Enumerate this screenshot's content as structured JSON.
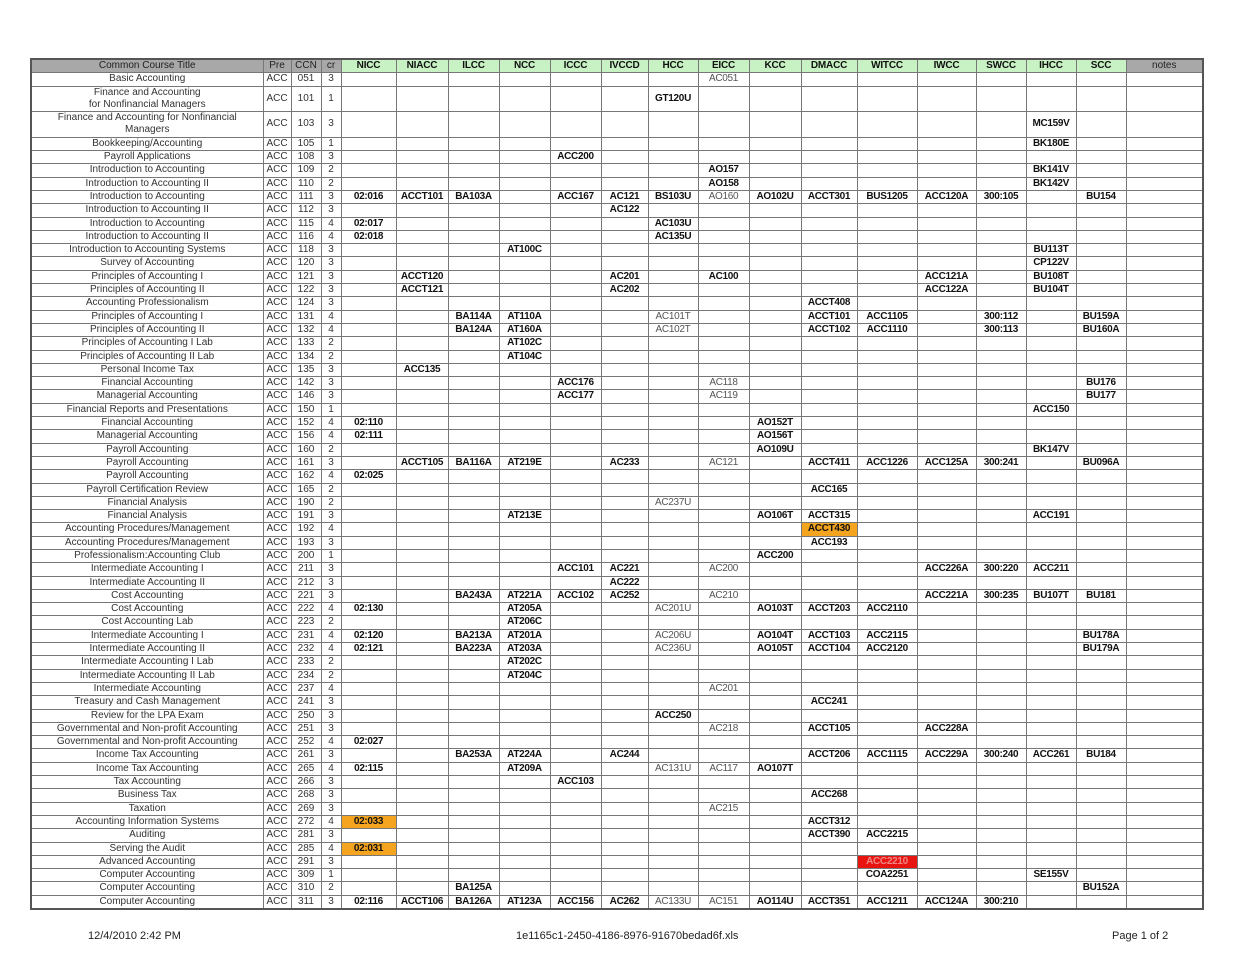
{
  "columns": {
    "title": "Common Course Title",
    "pre": "Pre",
    "ccn": "CCN",
    "cr": "cr",
    "colleges": [
      "NICC",
      "NIACC",
      "ILCC",
      "NCC",
      "ICCC",
      "IVCCD",
      "HCC",
      "EICC",
      "KCC",
      "DMACC",
      "WITCC",
      "IWCC",
      "SWCC",
      "IHCC",
      "SCC"
    ],
    "notes": "notes"
  },
  "colors": {
    "header_green": "#c8f2c4",
    "highlight_orange": "#f4a41f",
    "highlight_red": "#e8140f"
  },
  "rows": [
    {
      "title": "Basic Accounting",
      "pre": "ACC",
      "ccn": "051",
      "cr": "3",
      "cells": {
        "EICC": "AC051"
      },
      "light": [
        "EICC"
      ]
    },
    {
      "title": "Finance and Accounting\nfor Nonfinancial Managers",
      "pre": "ACC",
      "ccn": "101",
      "cr": "1",
      "cells": {
        "HCC": "GT120U"
      }
    },
    {
      "title": "Finance and Accounting for Nonfinancial\nManagers",
      "pre": "ACC",
      "ccn": "103",
      "cr": "3",
      "cells": {
        "IHCC": "MC159V"
      }
    },
    {
      "title": "Bookkeeping/Accounting",
      "pre": "ACC",
      "ccn": "105",
      "cr": "1",
      "cells": {
        "IHCC": "BK180E"
      }
    },
    {
      "title": "Payroll Applications",
      "pre": "ACC",
      "ccn": "108",
      "cr": "3",
      "cells": {
        "ICCC": "ACC200"
      }
    },
    {
      "title": "Introduction to Accounting",
      "pre": "ACC",
      "ccn": "109",
      "cr": "2",
      "cells": {
        "EICC": "AO157",
        "IHCC": "BK141V"
      }
    },
    {
      "title": "Introduction to Accounting II",
      "pre": "ACC",
      "ccn": "110",
      "cr": "2",
      "cells": {
        "EICC": "AO158",
        "IHCC": "BK142V"
      }
    },
    {
      "title": "Introduction to Accounting",
      "pre": "ACC",
      "ccn": "111",
      "cr": "3",
      "cells": {
        "NICC": "02:016",
        "NIACC": "ACCT101",
        "ILCC": "BA103A",
        "ICCC": "ACC167",
        "IVCCD": "AC121",
        "HCC": "BS103U",
        "EICC": "AO160",
        "KCC": "AO102U",
        "DMACC": "ACCT301",
        "WITCC": "BUS1205",
        "IWCC": "ACC120A",
        "SWCC": "300:105",
        "SCC": "BU154"
      },
      "light": [
        "EICC"
      ]
    },
    {
      "title": "Introduction to Accounting II",
      "pre": "ACC",
      "ccn": "112",
      "cr": "3",
      "cells": {
        "IVCCD": "AC122"
      }
    },
    {
      "title": "Introduction to Accounting",
      "pre": "ACC",
      "ccn": "115",
      "cr": "4",
      "cells": {
        "NICC": "02:017",
        "HCC": "AC103U"
      }
    },
    {
      "title": "Introduction to Accounting II",
      "pre": "ACC",
      "ccn": "116",
      "cr": "4",
      "cells": {
        "NICC": "02:018",
        "HCC": "AC135U"
      }
    },
    {
      "title": "Introduction to Accounting Systems",
      "pre": "ACC",
      "ccn": "118",
      "cr": "3",
      "cells": {
        "NCC": "AT100C",
        "IHCC": "BU113T"
      }
    },
    {
      "title": "Survey of Accounting",
      "pre": "ACC",
      "ccn": "120",
      "cr": "3",
      "cells": {
        "IHCC": "CP122V"
      }
    },
    {
      "title": "Principles of Accounting I",
      "pre": "ACC",
      "ccn": "121",
      "cr": "3",
      "cells": {
        "NIACC": "ACCT120",
        "IVCCD": "AC201",
        "EICC": "AC100",
        "IWCC": "ACC121A",
        "IHCC": "BU108T"
      }
    },
    {
      "title": "Principles of Accounting II",
      "pre": "ACC",
      "ccn": "122",
      "cr": "3",
      "cells": {
        "NIACC": "ACCT121",
        "IVCCD": "AC202",
        "IWCC": "ACC122A",
        "IHCC": "BU104T"
      }
    },
    {
      "title": "Accounting Professionalism",
      "pre": "ACC",
      "ccn": "124",
      "cr": "3",
      "cells": {
        "DMACC": "ACCT408"
      }
    },
    {
      "title": "Principles of Accounting I",
      "pre": "ACC",
      "ccn": "131",
      "cr": "4",
      "cells": {
        "ILCC": "BA114A",
        "NCC": "AT110A",
        "HCC": "AC101T",
        "DMACC": "ACCT101",
        "WITCC": "ACC1105",
        "SWCC": "300:112",
        "SCC": "BU159A"
      },
      "light": [
        "HCC"
      ]
    },
    {
      "title": "Principles of Accounting II",
      "pre": "ACC",
      "ccn": "132",
      "cr": "4",
      "cells": {
        "ILCC": "BA124A",
        "NCC": "AT160A",
        "HCC": "AC102T",
        "DMACC": "ACCT102",
        "WITCC": "ACC1110",
        "SWCC": "300:113",
        "SCC": "BU160A"
      },
      "light": [
        "HCC"
      ]
    },
    {
      "title": "Principles of Accounting I Lab",
      "pre": "ACC",
      "ccn": "133",
      "cr": "2",
      "cells": {
        "NCC": "AT102C"
      }
    },
    {
      "title": "Principles of Accounting II Lab",
      "pre": "ACC",
      "ccn": "134",
      "cr": "2",
      "cells": {
        "NCC": "AT104C"
      }
    },
    {
      "title": "Personal Income Tax",
      "pre": "ACC",
      "ccn": "135",
      "cr": "3",
      "cells": {
        "NIACC": "ACC135"
      }
    },
    {
      "title": "Financial Accounting",
      "pre": "ACC",
      "ccn": "142",
      "cr": "3",
      "cells": {
        "ICCC": "ACC176",
        "EICC": "AC118",
        "SCC": "BU176"
      },
      "light": [
        "EICC"
      ]
    },
    {
      "title": "Managerial Accounting",
      "pre": "ACC",
      "ccn": "146",
      "cr": "3",
      "cells": {
        "ICCC": "ACC177",
        "EICC": "AC119",
        "SCC": "BU177"
      },
      "light": [
        "EICC"
      ]
    },
    {
      "title": "Financial Reports and Presentations",
      "pre": "ACC",
      "ccn": "150",
      "cr": "1",
      "cells": {
        "IHCC": "ACC150"
      }
    },
    {
      "title": "Financial Accounting",
      "pre": "ACC",
      "ccn": "152",
      "cr": "4",
      "cells": {
        "NICC": "02:110",
        "KCC": "AO152T"
      }
    },
    {
      "title": "Managerial Accounting",
      "pre": "ACC",
      "ccn": "156",
      "cr": "4",
      "cells": {
        "NICC": "02:111",
        "KCC": "AO156T"
      }
    },
    {
      "title": "Payroll Accounting",
      "pre": "ACC",
      "ccn": "160",
      "cr": "2",
      "cells": {
        "KCC": "AO109U",
        "IHCC": "BK147V"
      }
    },
    {
      "title": "Payroll Accounting",
      "pre": "ACC",
      "ccn": "161",
      "cr": "3",
      "cells": {
        "NIACC": "ACCT105",
        "ILCC": "BA116A",
        "NCC": "AT219E",
        "IVCCD": "AC233",
        "EICC": "AC121",
        "DMACC": "ACCT411",
        "WITCC": "ACC1226",
        "IWCC": "ACC125A",
        "SWCC": "300:241",
        "SCC": "BU096A"
      },
      "light": [
        "EICC"
      ]
    },
    {
      "title": "Payroll Accounting",
      "pre": "ACC",
      "ccn": "162",
      "cr": "4",
      "cells": {
        "NICC": "02:025"
      }
    },
    {
      "title": "Payroll Certification Review",
      "pre": "ACC",
      "ccn": "165",
      "cr": "2",
      "cells": {
        "DMACC": "ACC165"
      }
    },
    {
      "title": "Financial Analysis",
      "pre": "ACC",
      "ccn": "190",
      "cr": "2",
      "cells": {
        "HCC": "AC237U"
      },
      "light": [
        "HCC"
      ]
    },
    {
      "title": "Financial Analysis",
      "pre": "ACC",
      "ccn": "191",
      "cr": "3",
      "cells": {
        "NCC": "AT213E",
        "KCC": "AO106T",
        "DMACC": "ACCT315",
        "IHCC": "ACC191"
      }
    },
    {
      "title": "Accounting Procedures/Management",
      "pre": "ACC",
      "ccn": "192",
      "cr": "4",
      "cells": {
        "DMACC": "ACCT430"
      },
      "highlight": {
        "DMACC": "orange"
      }
    },
    {
      "title": "Accounting Procedures/Management",
      "pre": "ACC",
      "ccn": "193",
      "cr": "3",
      "cells": {
        "DMACC": "ACC193"
      }
    },
    {
      "title": "Professionalism:Accounting Club",
      "pre": "ACC",
      "ccn": "200",
      "cr": "1",
      "cells": {
        "KCC": "ACC200"
      }
    },
    {
      "title": "Intermediate Accounting I",
      "pre": "ACC",
      "ccn": "211",
      "cr": "3",
      "cells": {
        "ICCC": "ACC101",
        "IVCCD": "AC221",
        "EICC": "AC200",
        "IWCC": "ACC226A",
        "SWCC": "300:220",
        "IHCC": "ACC211"
      },
      "light": [
        "EICC"
      ]
    },
    {
      "title": "Intermediate Accounting II",
      "pre": "ACC",
      "ccn": "212",
      "cr": "3",
      "cells": {
        "IVCCD": "AC222"
      }
    },
    {
      "title": "Cost Accounting",
      "pre": "ACC",
      "ccn": "221",
      "cr": "3",
      "cells": {
        "ILCC": "BA243A",
        "NCC": "AT221A",
        "ICCC": "ACC102",
        "IVCCD": "AC252",
        "EICC": "AC210",
        "IWCC": "ACC221A",
        "SWCC": "300:235",
        "IHCC": "BU107T",
        "SCC": "BU181"
      },
      "light": [
        "EICC"
      ]
    },
    {
      "title": "Cost Accounting",
      "pre": "ACC",
      "ccn": "222",
      "cr": "4",
      "cells": {
        "NICC": "02:130",
        "NCC": "AT205A",
        "HCC": "AC201U",
        "KCC": "AO103T",
        "DMACC": "ACCT203",
        "WITCC": "ACC2110"
      },
      "light": [
        "HCC"
      ]
    },
    {
      "title": "Cost Accounting Lab",
      "pre": "ACC",
      "ccn": "223",
      "cr": "2",
      "cells": {
        "NCC": "AT206C"
      }
    },
    {
      "title": "Intermediate Accounting I",
      "pre": "ACC",
      "ccn": "231",
      "cr": "4",
      "cells": {
        "NICC": "02:120",
        "ILCC": "BA213A",
        "NCC": "AT201A",
        "HCC": "AC206U",
        "KCC": "AO104T",
        "DMACC": "ACCT103",
        "WITCC": "ACC2115",
        "SCC": "BU178A"
      },
      "light": [
        "HCC"
      ]
    },
    {
      "title": "Intermediate Accounting II",
      "pre": "ACC",
      "ccn": "232",
      "cr": "4",
      "cells": {
        "NICC": "02:121",
        "ILCC": "BA223A",
        "NCC": "AT203A",
        "HCC": "AC236U",
        "KCC": "AO105T",
        "DMACC": "ACCT104",
        "WITCC": "ACC2120",
        "SCC": "BU179A"
      },
      "light": [
        "HCC"
      ]
    },
    {
      "title": "Intermediate Accounting I Lab",
      "pre": "ACC",
      "ccn": "233",
      "cr": "2",
      "cells": {
        "NCC": "AT202C"
      }
    },
    {
      "title": "Intermediate Accounting II Lab",
      "pre": "ACC",
      "ccn": "234",
      "cr": "2",
      "cells": {
        "NCC": "AT204C"
      }
    },
    {
      "title": "Intermediate Accounting",
      "pre": "ACC",
      "ccn": "237",
      "cr": "4",
      "cells": {
        "EICC": "AC201"
      },
      "light": [
        "EICC"
      ]
    },
    {
      "title": "Treasury and Cash Management",
      "pre": "ACC",
      "ccn": "241",
      "cr": "3",
      "cells": {
        "DMACC": "ACC241"
      }
    },
    {
      "title": "Review for the LPA Exam",
      "pre": "ACC",
      "ccn": "250",
      "cr": "3",
      "cells": {
        "HCC": "ACC250"
      }
    },
    {
      "title": "Governmental and Non-profit Accounting",
      "pre": "ACC",
      "ccn": "251",
      "cr": "3",
      "cells": {
        "EICC": "AC218",
        "DMACC": "ACCT105",
        "IWCC": "ACC228A"
      },
      "light": [
        "EICC"
      ]
    },
    {
      "title": "Governmental and Non-profit Accounting",
      "pre": "ACC",
      "ccn": "252",
      "cr": "4",
      "cells": {
        "NICC": "02:027"
      }
    },
    {
      "title": "Income Tax Accounting",
      "pre": "ACC",
      "ccn": "261",
      "cr": "3",
      "cells": {
        "ILCC": "BA253A",
        "NCC": "AT224A",
        "IVCCD": "AC244",
        "DMACC": "ACCT206",
        "WITCC": "ACC1115",
        "IWCC": "ACC229A",
        "SWCC": "300:240",
        "IHCC": "ACC261",
        "SCC": "BU184"
      }
    },
    {
      "title": "Income Tax Accounting",
      "pre": "ACC",
      "ccn": "265",
      "cr": "4",
      "cells": {
        "NICC": "02:115",
        "NCC": "AT209A",
        "HCC": "AC131U",
        "EICC": "AC117",
        "KCC": "AO107T"
      },
      "light": [
        "HCC",
        "EICC"
      ]
    },
    {
      "title": "Tax Accounting",
      "pre": "ACC",
      "ccn": "266",
      "cr": "3",
      "cells": {
        "ICCC": "ACC103"
      }
    },
    {
      "title": "Business Tax",
      "pre": "ACC",
      "ccn": "268",
      "cr": "3",
      "cells": {
        "DMACC": "ACC268"
      }
    },
    {
      "title": "Taxation",
      "pre": "ACC",
      "ccn": "269",
      "cr": "3",
      "cells": {
        "EICC": "AC215"
      },
      "light": [
        "EICC"
      ]
    },
    {
      "title": "Accounting Information Systems",
      "pre": "ACC",
      "ccn": "272",
      "cr": "4",
      "cells": {
        "NICC": "02:033",
        "DMACC": "ACCT312"
      },
      "highlight": {
        "NICC": "orange"
      }
    },
    {
      "title": "Auditing",
      "pre": "ACC",
      "ccn": "281",
      "cr": "3",
      "cells": {
        "DMACC": "ACCT390",
        "WITCC": "ACC2215"
      }
    },
    {
      "title": "Serving the Audit",
      "pre": "ACC",
      "ccn": "285",
      "cr": "4",
      "cells": {
        "NICC": "02:031"
      },
      "highlight": {
        "NICC": "orange"
      }
    },
    {
      "title": "Advanced Accounting",
      "pre": "ACC",
      "ccn": "291",
      "cr": "3",
      "cells": {
        "WITCC": "ACC2210"
      },
      "highlight": {
        "WITCC": "red"
      }
    },
    {
      "title": "Computer Accounting",
      "pre": "ACC",
      "ccn": "309",
      "cr": "1",
      "cells": {
        "WITCC": "COA2251",
        "IHCC": "SE155V"
      }
    },
    {
      "title": "Computer Accounting",
      "pre": "ACC",
      "ccn": "310",
      "cr": "2",
      "cells": {
        "ILCC": "BA125A",
        "SCC": "BU152A"
      }
    },
    {
      "title": "Computer Accounting",
      "pre": "ACC",
      "ccn": "311",
      "cr": "3",
      "cells": {
        "NICC": "02:116",
        "NIACC": "ACCT106",
        "ILCC": "BA126A",
        "NCC": "AT123A",
        "ICCC": "ACC156",
        "IVCCD": "AC262",
        "HCC": "AC133U",
        "EICC": "AC151",
        "KCC": "AO114U",
        "DMACC": "ACCT351",
        "WITCC": "ACC1211",
        "IWCC": "ACC124A",
        "SWCC": "300:210"
      },
      "light": [
        "HCC",
        "EICC"
      ]
    }
  ],
  "footer": {
    "datetime": "12/4/2010 2:42 PM",
    "filename": "1e1165c1-2450-4186-8976-91670bedad6f.xls",
    "page": "Page 1 of 2"
  }
}
